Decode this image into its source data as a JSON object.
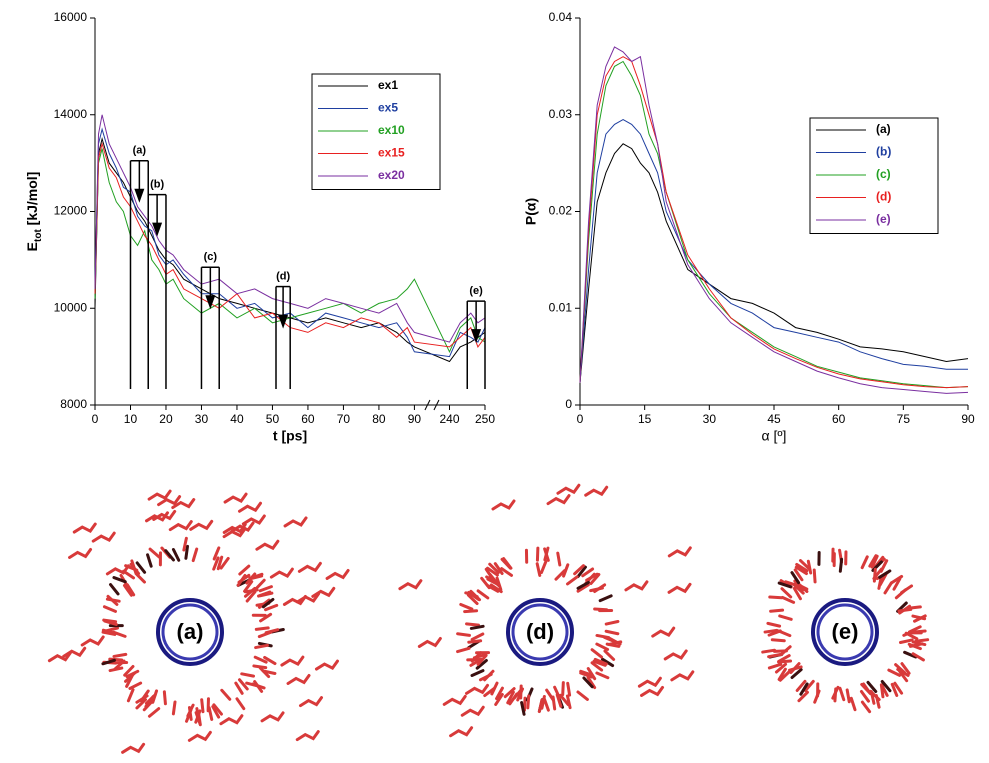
{
  "chart_data": [
    {
      "type": "line",
      "ylabel": [
        "E",
        "tot",
        " [kJ/mol]"
      ],
      "xlabel": "t [ps]",
      "axis_break": true,
      "xlim": [
        0,
        250
      ],
      "xticks": [
        0,
        10,
        20,
        30,
        40,
        50,
        60,
        70,
        80,
        90,
        240,
        250
      ],
      "ylim": [
        8000,
        16000
      ],
      "yticks": [
        8000,
        10000,
        12000,
        14000,
        16000
      ],
      "legend": "upper right",
      "x": [
        0,
        1,
        2,
        4,
        6,
        8,
        10,
        12,
        14,
        16,
        18,
        20,
        22,
        25,
        30,
        35,
        40,
        45,
        50,
        55,
        60,
        65,
        70,
        75,
        80,
        85,
        88,
        90,
        240,
        243,
        246,
        248,
        250
      ],
      "series": [
        {
          "name": "ex1",
          "color": "#000000",
          "values": [
            10000,
            13200,
            13500,
            13000,
            12800,
            12600,
            12300,
            12000,
            11800,
            11500,
            11200,
            11000,
            10900,
            10600,
            10400,
            10200,
            10100,
            10000,
            9900,
            9800,
            9700,
            9800,
            9700,
            9600,
            9700,
            9500,
            9300,
            9200,
            8900,
            9200,
            9300,
            9400,
            9500
          ]
        },
        {
          "name": "ex5",
          "color": "#1f3fa0",
          "values": [
            10500,
            13400,
            13700,
            13200,
            12900,
            12500,
            12400,
            11900,
            11700,
            11600,
            11100,
            10900,
            11000,
            10700,
            10300,
            10300,
            10000,
            10100,
            9800,
            9900,
            9600,
            9900,
            9800,
            9700,
            9600,
            9700,
            9400,
            9100,
            9000,
            9500,
            9400,
            9300,
            9600
          ]
        },
        {
          "name": "ex10",
          "color": "#22a022",
          "values": [
            10200,
            13000,
            13300,
            12600,
            12200,
            12000,
            11500,
            11300,
            11600,
            11000,
            10800,
            10500,
            10600,
            10200,
            9900,
            10100,
            9800,
            10000,
            9700,
            9800,
            9900,
            10000,
            10100,
            9900,
            10100,
            10200,
            10400,
            10600,
            9100,
            9600,
            9800,
            9400,
            9300
          ]
        },
        {
          "name": "ex15",
          "color": "#e82020",
          "values": [
            10300,
            13100,
            13400,
            12900,
            12700,
            12300,
            12100,
            11800,
            11500,
            11300,
            11000,
            10700,
            10800,
            10400,
            10200,
            10000,
            10300,
            9800,
            9900,
            9600,
            9500,
            9700,
            9600,
            9800,
            9700,
            9400,
            9600,
            9300,
            9200,
            9400,
            9600,
            9200,
            9400
          ]
        },
        {
          "name": "ex20",
          "color": "#7a2fa0",
          "values": [
            10400,
            13600,
            14000,
            13400,
            13100,
            12800,
            12500,
            12100,
            11900,
            11700,
            11400,
            11200,
            11100,
            10800,
            10500,
            10600,
            10300,
            10400,
            10200,
            10100,
            10000,
            10200,
            10100,
            10000,
            9900,
            10100,
            9700,
            9500,
            9300,
            9700,
            9900,
            9700,
            9800
          ]
        }
      ],
      "annotations": [
        {
          "label": "(a)",
          "x": [
            10,
            15
          ]
        },
        {
          "label": "(b)",
          "x": [
            15,
            20
          ]
        },
        {
          "label": "(c)",
          "x": [
            30,
            35
          ]
        },
        {
          "label": "(d)",
          "x": [
            51,
            55
          ]
        },
        {
          "label": "(e)",
          "x": [
            245,
            250
          ]
        }
      ]
    },
    {
      "type": "line",
      "ylabel": "P(α)",
      "xlabel": "α [º]",
      "xlim": [
        0,
        90
      ],
      "xticks": [
        0,
        15,
        30,
        45,
        60,
        75,
        90
      ],
      "ylim": [
        0,
        0.04
      ],
      "yticks": [
        0,
        0.01,
        0.02,
        0.03,
        0.04
      ],
      "legend": "upper right",
      "x": [
        0,
        2,
        4,
        6,
        8,
        10,
        12,
        14,
        16,
        18,
        20,
        25,
        30,
        35,
        40,
        45,
        50,
        55,
        60,
        65,
        70,
        75,
        80,
        85,
        90
      ],
      "series": [
        {
          "name": "(a)",
          "color": "#000000",
          "values": [
            0.0023,
            0.012,
            0.021,
            0.024,
            0.026,
            0.027,
            0.0265,
            0.025,
            0.024,
            0.022,
            0.019,
            0.014,
            0.0125,
            0.011,
            0.0105,
            0.0095,
            0.008,
            0.0075,
            0.0068,
            0.006,
            0.0058,
            0.0055,
            0.005,
            0.0045,
            0.0048
          ]
        },
        {
          "name": "(b)",
          "color": "#1f3fa0",
          "values": [
            0.0023,
            0.014,
            0.024,
            0.028,
            0.029,
            0.0295,
            0.029,
            0.028,
            0.026,
            0.024,
            0.02,
            0.015,
            0.0125,
            0.0105,
            0.0095,
            0.008,
            0.0075,
            0.007,
            0.0065,
            0.0055,
            0.0048,
            0.0042,
            0.004,
            0.0037,
            0.0037
          ]
        },
        {
          "name": "(c)",
          "color": "#22a022",
          "values": [
            0.0023,
            0.017,
            0.028,
            0.033,
            0.035,
            0.0355,
            0.034,
            0.032,
            0.028,
            0.026,
            0.022,
            0.015,
            0.0115,
            0.009,
            0.0075,
            0.006,
            0.005,
            0.004,
            0.0034,
            0.0028,
            0.0025,
            0.0022,
            0.002,
            0.0018,
            0.0019
          ]
        },
        {
          "name": "(d)",
          "color": "#e82020",
          "values": [
            0.0023,
            0.018,
            0.03,
            0.034,
            0.0355,
            0.036,
            0.0355,
            0.033,
            0.03,
            0.027,
            0.022,
            0.0155,
            0.012,
            0.009,
            0.0073,
            0.0058,
            0.0048,
            0.0039,
            0.0032,
            0.0027,
            0.0024,
            0.0021,
            0.0019,
            0.0018,
            0.0019
          ]
        },
        {
          "name": "(e)",
          "color": "#7a2fa0",
          "values": [
            0.0023,
            0.019,
            0.031,
            0.035,
            0.037,
            0.0365,
            0.0355,
            0.036,
            0.031,
            0.027,
            0.021,
            0.0145,
            0.011,
            0.0085,
            0.007,
            0.0055,
            0.0045,
            0.0035,
            0.0028,
            0.0022,
            0.0018,
            0.0016,
            0.0014,
            0.0012,
            0.0013
          ]
        }
      ]
    }
  ],
  "images": [
    {
      "label": "(a)"
    },
    {
      "label": "(d)"
    },
    {
      "label": "(e)"
    }
  ]
}
